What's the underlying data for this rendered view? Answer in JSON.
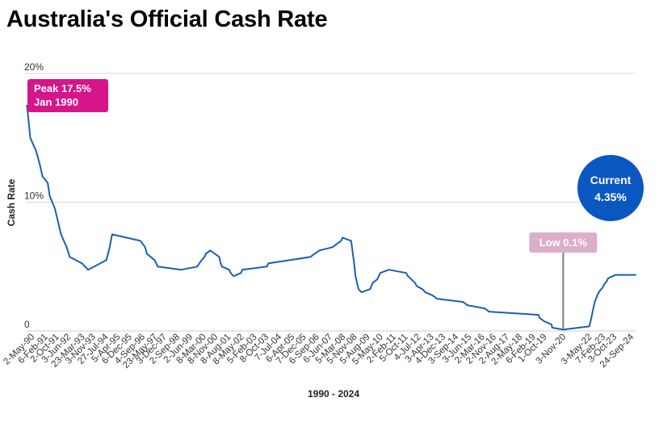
{
  "page": {
    "title": "Australia's Official Cash Rate"
  },
  "colors": {
    "line": "#1a5fb4",
    "grid": "#d9d9d9",
    "peak_box": "#d6158a",
    "low_box": "#dcaecb",
    "current_circle": "#0b57c1",
    "marker_line": "#7f7f7f",
    "text": "#333333"
  },
  "chart_data": {
    "type": "line",
    "title": "Australia's Official Cash Rate",
    "xlabel": "1990 - 2024",
    "ylabel": "Cash Rate",
    "ylim": [
      0,
      20
    ],
    "x_range": [
      "1990-01-01",
      "2024-12-31"
    ],
    "y_ticks": [
      {
        "value": 0,
        "label": "0"
      },
      {
        "value": 10,
        "label": "10%"
      },
      {
        "value": 20,
        "label": "20%"
      }
    ],
    "x_tick_labels": [
      {
        "date": "1990-05-02",
        "label": "2-May-90"
      },
      {
        "date": "1991-02-06",
        "label": "6-Feb-91"
      },
      {
        "date": "1991-10-02",
        "label": "2-Oct-91"
      },
      {
        "date": "1992-06-03",
        "label": "3-Jun-92"
      },
      {
        "date": "1993-03-23",
        "label": "23-Mar-93"
      },
      {
        "date": "1993-11-03",
        "label": "3-Nov-93"
      },
      {
        "date": "1994-07-27",
        "label": "27-Jul-94"
      },
      {
        "date": "1995-04-05",
        "label": "5-Apr-95"
      },
      {
        "date": "1995-12-06",
        "label": "6-Dec-95"
      },
      {
        "date": "1996-09-04",
        "label": "4-Sep-96"
      },
      {
        "date": "1997-05-23",
        "label": "23-May-97"
      },
      {
        "date": "1997-12-03",
        "label": "3-Dec-97"
      },
      {
        "date": "1998-09-02",
        "label": "2-Sep-98"
      },
      {
        "date": "1999-06-02",
        "label": "2-Jun-99"
      },
      {
        "date": "2000-03-08",
        "label": "8-Mar-00"
      },
      {
        "date": "2000-11-08",
        "label": "8-Nov-00"
      },
      {
        "date": "2001-08-08",
        "label": "8-Aug-01"
      },
      {
        "date": "2002-05-08",
        "label": "8-May-02"
      },
      {
        "date": "2003-02-05",
        "label": "5-Feb-03"
      },
      {
        "date": "2003-10-08",
        "label": "8-Oct-03"
      },
      {
        "date": "2004-07-07",
        "label": "7-Jul-04"
      },
      {
        "date": "2005-04-06",
        "label": "6-Apr-05"
      },
      {
        "date": "2005-12-07",
        "label": "7-Dec-05"
      },
      {
        "date": "2006-09-06",
        "label": "6-Sep-06"
      },
      {
        "date": "2007-06-06",
        "label": "6-Jun-07"
      },
      {
        "date": "2008-03-05",
        "label": "5-Mar-08"
      },
      {
        "date": "2008-11-05",
        "label": "5-Nov-08"
      },
      {
        "date": "2009-08-05",
        "label": "5-Aug-09"
      },
      {
        "date": "2010-05-05",
        "label": "5-May-10"
      },
      {
        "date": "2011-02-02",
        "label": "2-Feb-11"
      },
      {
        "date": "2011-10-05",
        "label": "5-Oct-11"
      },
      {
        "date": "2012-07-04",
        "label": "4-Jul-12"
      },
      {
        "date": "2013-04-03",
        "label": "3-Apr-13"
      },
      {
        "date": "2013-12-04",
        "label": "4-Dec-13"
      },
      {
        "date": "2014-09-03",
        "label": "3-Sep-14"
      },
      {
        "date": "2015-06-03",
        "label": "3-Jun-15"
      },
      {
        "date": "2016-03-02",
        "label": "2-Mar-16"
      },
      {
        "date": "2016-11-02",
        "label": "2-Nov-16"
      },
      {
        "date": "2017-08-02",
        "label": "2-Aug-17"
      },
      {
        "date": "2018-05-02",
        "label": "2-May-18"
      },
      {
        "date": "2019-02-06",
        "label": "6-Feb-19"
      },
      {
        "date": "2019-10-01",
        "label": "1-Oct-19"
      },
      {
        "date": "2020-11-03",
        "label": "3-Nov-20"
      },
      {
        "date": "2022-05-03",
        "label": "3-May-22"
      },
      {
        "date": "2023-02-07",
        "label": "7-Feb-23"
      },
      {
        "date": "2023-10-03",
        "label": "3-Oct-23"
      },
      {
        "date": "2024-09-24",
        "label": "24-Sep-24"
      }
    ],
    "series": [
      {
        "points": [
          [
            "1990-01-23",
            17.5
          ],
          [
            "1990-02-15",
            16.75
          ],
          [
            "1990-04-04",
            15.0
          ],
          [
            "1990-08-02",
            14.0
          ],
          [
            "1990-10-15",
            13.0
          ],
          [
            "1990-12-18",
            12.0
          ],
          [
            "1991-04-04",
            11.5
          ],
          [
            "1991-05-16",
            10.5
          ],
          [
            "1991-09-03",
            9.5
          ],
          [
            "1991-11-06",
            8.5
          ],
          [
            "1992-01-08",
            7.5
          ],
          [
            "1992-05-06",
            6.5
          ],
          [
            "1992-07-08",
            5.75
          ],
          [
            "1993-03-23",
            5.25
          ],
          [
            "1993-07-30",
            4.75
          ],
          [
            "1994-08-17",
            5.5
          ],
          [
            "1994-10-24",
            6.5
          ],
          [
            "1994-12-14",
            7.5
          ],
          [
            "1996-07-31",
            7.0
          ],
          [
            "1996-11-06",
            6.5
          ],
          [
            "1996-12-11",
            6.0
          ],
          [
            "1997-05-23",
            5.5
          ],
          [
            "1997-07-30",
            5.0
          ],
          [
            "1998-12-02",
            4.75
          ],
          [
            "1999-11-03",
            5.0
          ],
          [
            "2000-02-02",
            5.5
          ],
          [
            "2000-04-05",
            5.75
          ],
          [
            "2000-05-03",
            6.0
          ],
          [
            "2000-08-02",
            6.25
          ],
          [
            "2001-02-07",
            5.75
          ],
          [
            "2001-03-07",
            5.25
          ],
          [
            "2001-04-04",
            5.0
          ],
          [
            "2001-09-05",
            4.75
          ],
          [
            "2001-10-03",
            4.5
          ],
          [
            "2001-12-05",
            4.25
          ],
          [
            "2002-05-08",
            4.5
          ],
          [
            "2002-06-05",
            4.75
          ],
          [
            "2003-11-05",
            5.0
          ],
          [
            "2003-12-03",
            5.25
          ],
          [
            "2005-03-02",
            5.5
          ],
          [
            "2006-05-03",
            5.75
          ],
          [
            "2006-08-02",
            6.0
          ],
          [
            "2006-11-08",
            6.25
          ],
          [
            "2007-08-08",
            6.5
          ],
          [
            "2007-11-07",
            6.75
          ],
          [
            "2008-02-06",
            7.0
          ],
          [
            "2008-03-05",
            7.25
          ],
          [
            "2008-09-03",
            7.0
          ],
          [
            "2008-10-08",
            6.0
          ],
          [
            "2008-11-05",
            5.25
          ],
          [
            "2008-12-03",
            4.25
          ],
          [
            "2009-02-04",
            3.25
          ],
          [
            "2009-04-08",
            3.0
          ],
          [
            "2009-10-07",
            3.25
          ],
          [
            "2009-11-04",
            3.5
          ],
          [
            "2009-12-02",
            3.75
          ],
          [
            "2010-03-03",
            4.0
          ],
          [
            "2010-04-07",
            4.25
          ],
          [
            "2010-05-05",
            4.5
          ],
          [
            "2010-11-03",
            4.75
          ],
          [
            "2011-11-02",
            4.5
          ],
          [
            "2011-12-07",
            4.25
          ],
          [
            "2012-05-02",
            3.75
          ],
          [
            "2012-06-06",
            3.5
          ],
          [
            "2012-10-03",
            3.25
          ],
          [
            "2012-12-05",
            3.0
          ],
          [
            "2013-05-08",
            2.75
          ],
          [
            "2013-08-07",
            2.5
          ],
          [
            "2015-02-04",
            2.25
          ],
          [
            "2015-05-06",
            2.0
          ],
          [
            "2016-05-04",
            1.75
          ],
          [
            "2016-08-03",
            1.5
          ],
          [
            "2019-06-05",
            1.25
          ],
          [
            "2019-07-03",
            1.0
          ],
          [
            "2019-10-02",
            0.75
          ],
          [
            "2020-03-04",
            0.5
          ],
          [
            "2020-03-20",
            0.25
          ],
          [
            "2020-11-04",
            0.1
          ],
          [
            "2022-05-04",
            0.35
          ],
          [
            "2022-06-08",
            0.85
          ],
          [
            "2022-07-06",
            1.35
          ],
          [
            "2022-08-03",
            1.85
          ],
          [
            "2022-09-07",
            2.35
          ],
          [
            "2022-10-05",
            2.6
          ],
          [
            "2022-11-02",
            2.85
          ],
          [
            "2022-12-07",
            3.1
          ],
          [
            "2023-02-08",
            3.35
          ],
          [
            "2023-03-08",
            3.6
          ],
          [
            "2023-05-03",
            3.85
          ],
          [
            "2023-06-07",
            4.1
          ],
          [
            "2023-11-08",
            4.35
          ],
          [
            "2024-12-31",
            4.35
          ]
        ]
      }
    ],
    "annotations": {
      "peak": {
        "line1": "Peak 17.5%",
        "line2": "Jan 1990",
        "date": "1990-01-23",
        "value": 17.5
      },
      "low": {
        "label": "Low 0.1%",
        "date": "2020-11-04",
        "value": 0.1
      },
      "current": {
        "line1": "Current",
        "line2": "4.35%",
        "value": 4.35
      }
    },
    "grid": true,
    "legend": "none"
  }
}
